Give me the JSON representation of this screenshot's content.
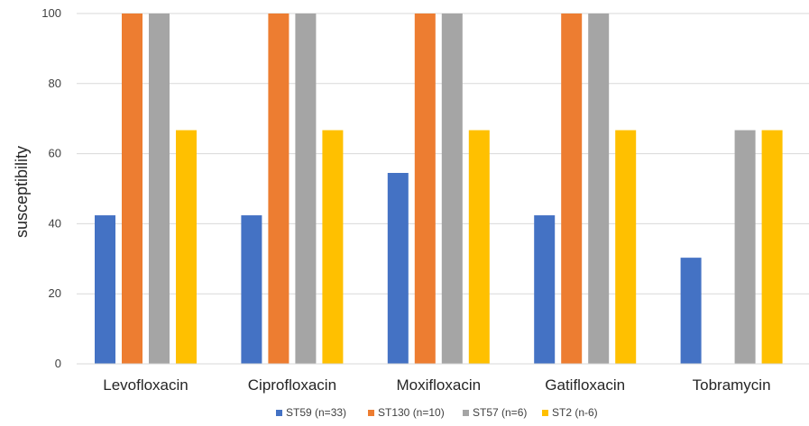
{
  "chart_data": {
    "type": "bar",
    "title": "",
    "xlabel": "",
    "ylabel": "susceptibility",
    "ylim": [
      0,
      100
    ],
    "yticks": [
      0,
      20,
      40,
      60,
      80,
      100
    ],
    "grid": true,
    "legend_position": "bottom",
    "categories": [
      "Levofloxacin",
      "Ciprofloxacin",
      "Moxifloxacin",
      "Gatifloxacin",
      "Tobramycin"
    ],
    "series": [
      {
        "name": "ST59 (n=33)",
        "color": "#4472C4",
        "values": [
          42.4,
          42.4,
          54.5,
          42.4,
          30.3
        ]
      },
      {
        "name": "ST130 (n=10)",
        "color": "#ED7D31",
        "values": [
          100,
          100,
          100,
          100,
          0
        ]
      },
      {
        "name": "ST57 (n=6)",
        "color": "#A5A5A5",
        "values": [
          100,
          100,
          100,
          100,
          66.7
        ]
      },
      {
        "name": "ST2 (n-6)",
        "color": "#FFC000",
        "values": [
          66.7,
          66.7,
          66.7,
          66.7,
          66.7
        ]
      }
    ]
  }
}
